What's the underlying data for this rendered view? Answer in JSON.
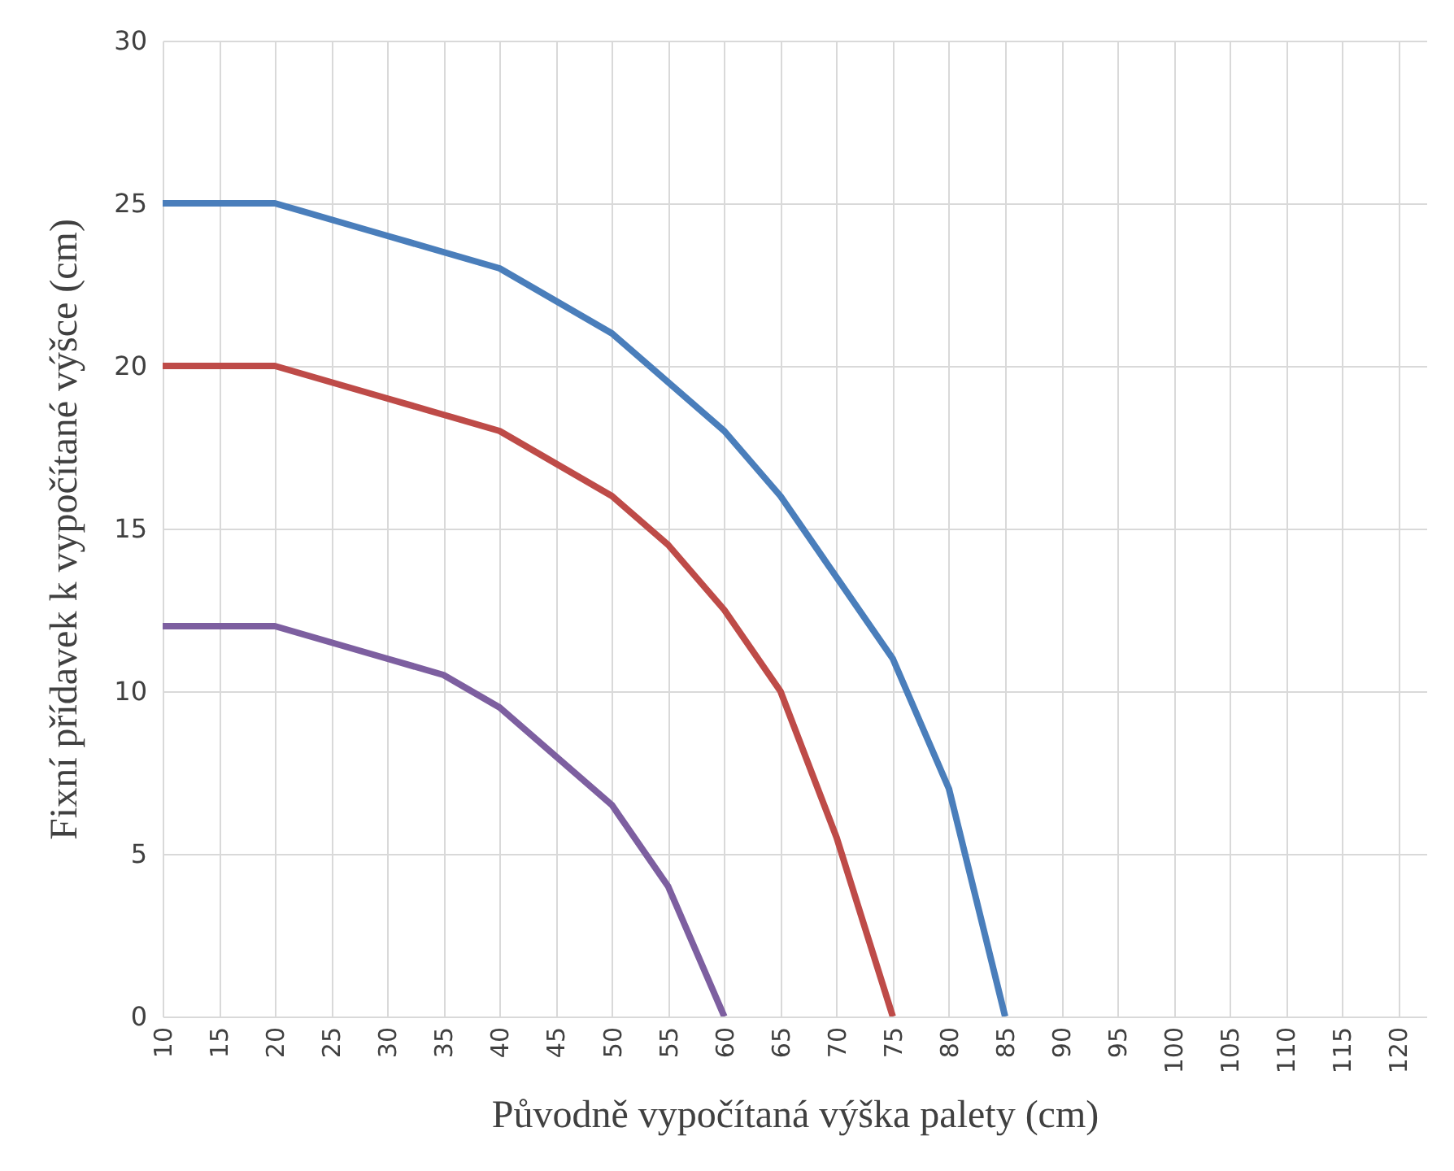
{
  "chart_data": {
    "type": "line",
    "xlabel": "Původně vypočítaná výška palety (cm)",
    "ylabel": "Fixní přídavek k vypočítané výšce (cm)",
    "xlim": [
      10,
      122.5
    ],
    "xticks": [
      10,
      15,
      20,
      25,
      30,
      35,
      40,
      45,
      50,
      55,
      60,
      65,
      70,
      75,
      80,
      85,
      90,
      95,
      100,
      105,
      110,
      115,
      120
    ],
    "ylim": [
      0,
      30
    ],
    "yticks": [
      0,
      5,
      10,
      15,
      20,
      25,
      30
    ],
    "grid": true,
    "line_style": "solid",
    "series": [
      {
        "color": "#4a7ebb",
        "x": [
          10,
          20,
          25,
          30,
          35,
          40,
          45,
          50,
          55,
          60,
          65,
          70,
          75,
          80,
          85
        ],
        "values": [
          25,
          25,
          24.5,
          24,
          23.5,
          23,
          22,
          21,
          19.5,
          18,
          16,
          13.5,
          11,
          7,
          0
        ]
      },
      {
        "color": "#be4b48",
        "x": [
          10,
          20,
          25,
          30,
          35,
          40,
          45,
          50,
          55,
          60,
          65,
          70,
          75
        ],
        "values": [
          20,
          20,
          19.5,
          19,
          18.5,
          18,
          17,
          16,
          14.5,
          12.5,
          10,
          5.5,
          0
        ]
      },
      {
        "color": "#7d5fa0",
        "x": [
          10,
          20,
          25,
          30,
          35,
          40,
          45,
          50,
          55,
          60
        ],
        "values": [
          12,
          12,
          11.5,
          11,
          10.5,
          9.5,
          8,
          6.5,
          4,
          0
        ]
      }
    ]
  }
}
